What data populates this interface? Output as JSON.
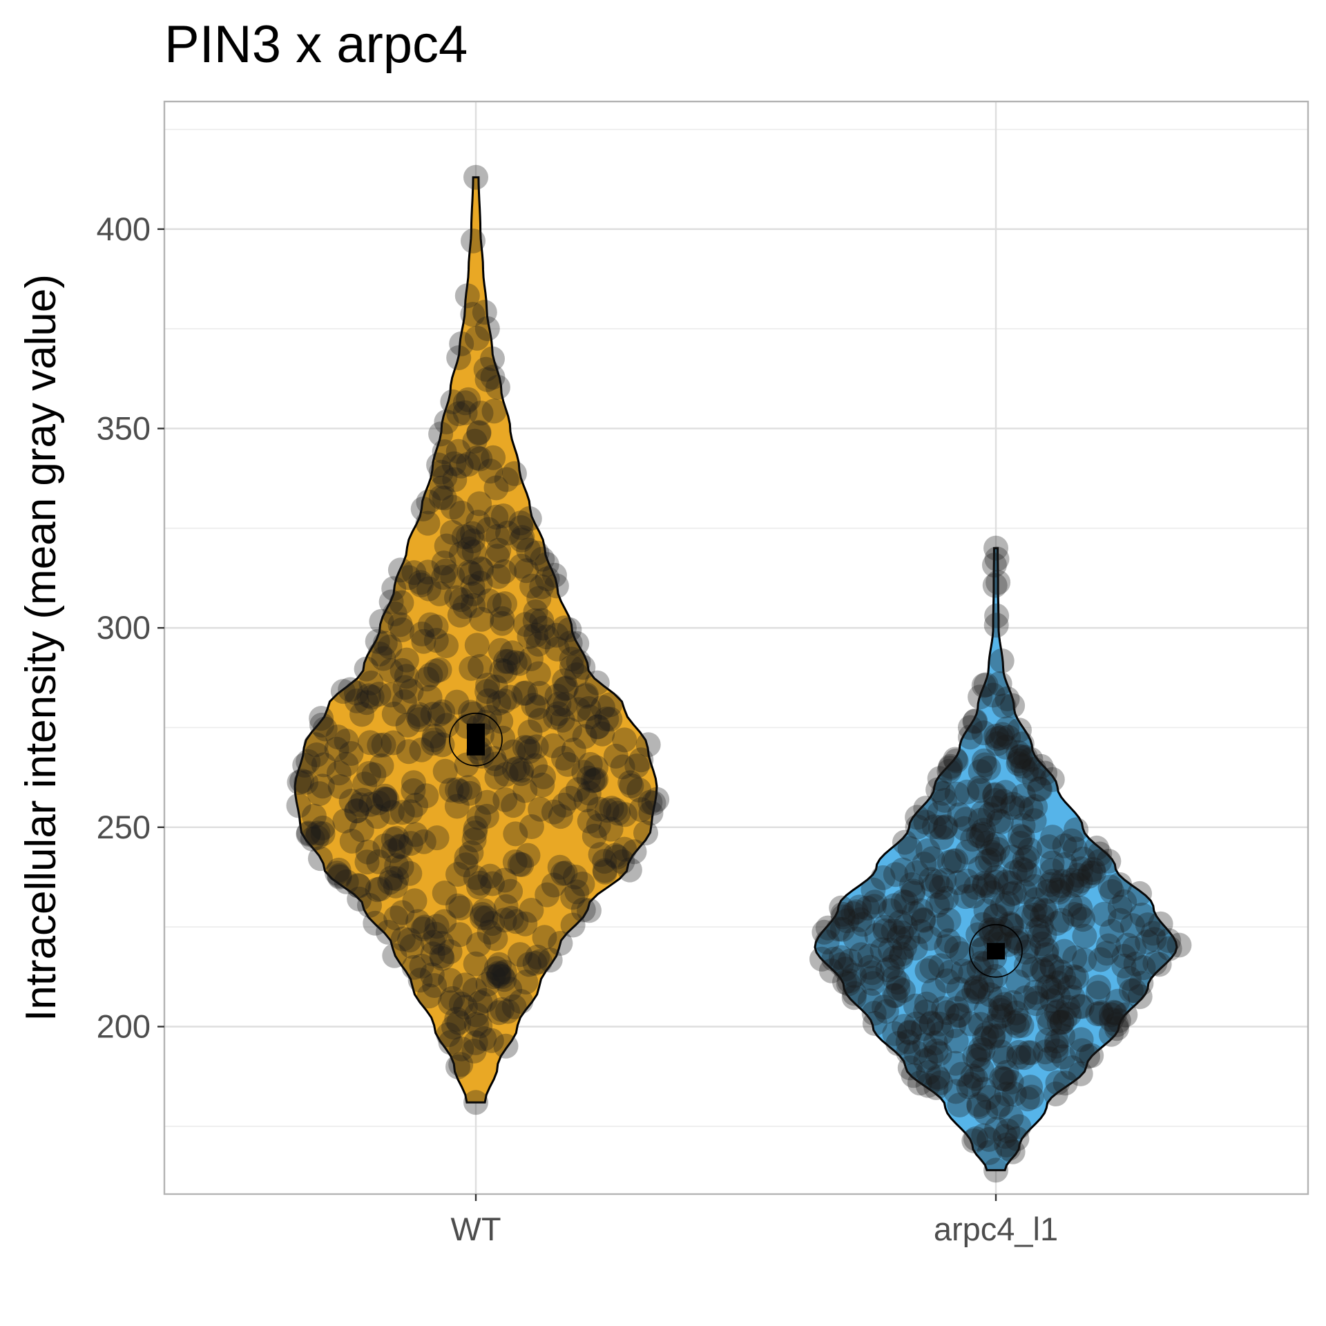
{
  "chart_data": {
    "type": "violin",
    "title": "PIN3 x arpc4",
    "xlabel": "",
    "ylabel": "Intracellular intensity (mean gray value)",
    "categories": [
      "WT",
      "arpc4_l1"
    ],
    "ylim": [
      158,
      432
    ],
    "yticks": [
      200,
      250,
      300,
      350,
      400
    ],
    "ytick_labels": [
      "200",
      "250",
      "300",
      "350",
      "400"
    ],
    "grid": true,
    "legend": "none",
    "series": [
      {
        "category": "WT",
        "color": "#E9A825",
        "min": 181,
        "max": 413,
        "median": 272,
        "median_range": [
          268,
          276
        ],
        "n": 560,
        "density_profile": [
          [
            181,
            0.05
          ],
          [
            190,
            0.12
          ],
          [
            200,
            0.23
          ],
          [
            210,
            0.35
          ],
          [
            220,
            0.46
          ],
          [
            230,
            0.62
          ],
          [
            240,
            0.84
          ],
          [
            250,
            0.97
          ],
          [
            260,
            1.0
          ],
          [
            270,
            0.95
          ],
          [
            280,
            0.82
          ],
          [
            290,
            0.62
          ],
          [
            300,
            0.53
          ],
          [
            310,
            0.45
          ],
          [
            320,
            0.38
          ],
          [
            330,
            0.3
          ],
          [
            340,
            0.24
          ],
          [
            350,
            0.19
          ],
          [
            360,
            0.14
          ],
          [
            370,
            0.09
          ],
          [
            380,
            0.06
          ],
          [
            390,
            0.04
          ],
          [
            400,
            0.025
          ],
          [
            413,
            0.015
          ]
        ]
      },
      {
        "category": "arpc4_l1",
        "color": "#56B4E9",
        "min": 164,
        "max": 320,
        "median": 219,
        "median_range": [
          217,
          221
        ],
        "n": 560,
        "density_profile": [
          [
            164,
            0.05
          ],
          [
            170,
            0.13
          ],
          [
            180,
            0.28
          ],
          [
            190,
            0.5
          ],
          [
            200,
            0.68
          ],
          [
            210,
            0.84
          ],
          [
            220,
            1.0
          ],
          [
            230,
            0.87
          ],
          [
            240,
            0.66
          ],
          [
            250,
            0.48
          ],
          [
            260,
            0.34
          ],
          [
            270,
            0.2
          ],
          [
            280,
            0.1
          ],
          [
            290,
            0.04
          ],
          [
            300,
            0.015
          ],
          [
            310,
            0.012
          ],
          [
            320,
            0.01
          ]
        ]
      }
    ]
  }
}
